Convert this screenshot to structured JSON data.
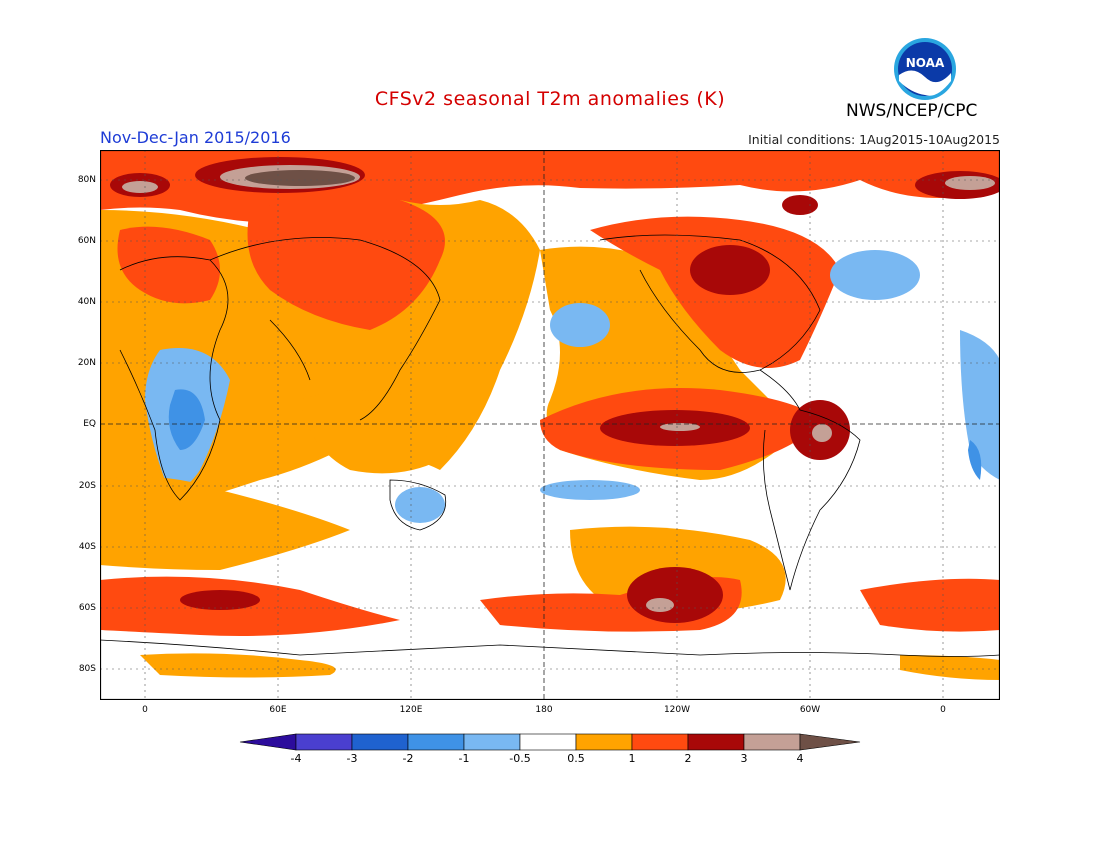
{
  "header": {
    "title": "CFSv2 seasonal T2m anomalies (K)",
    "season": "Nov-Dec-Jan 2015/2016",
    "initial_conditions": "Initial conditions: 1Aug2015-10Aug2015",
    "organization": "NWS/NCEP/CPC",
    "logo_text": "NOAA"
  },
  "map": {
    "lat_labels": [
      "80N",
      "60N",
      "40N",
      "20N",
      "EQ",
      "20S",
      "40S",
      "60S",
      "80S"
    ],
    "lon_labels": [
      "0",
      "60E",
      "120E",
      "180",
      "120W",
      "60W",
      "0"
    ]
  },
  "colorbar": {
    "labels": [
      "-4",
      "-3",
      "-2",
      "-1",
      "-0.5",
      "0.5",
      "1",
      "2",
      "3",
      "4"
    ],
    "colors": {
      "lt_-4": "#2c0c9c",
      "-4_-3": "#4a3fcf",
      "-3_-2": "#1f62cf",
      "-2_-1": "#3f92e6",
      "-1_-0.5": "#79b8f2",
      "neutral": "#ffffff",
      "0.5_1": "#ffa300",
      "1_2": "#ff4a10",
      "2_3": "#a80808",
      "3_4": "#c4a096",
      "gt_4": "#6e5046"
    }
  }
}
